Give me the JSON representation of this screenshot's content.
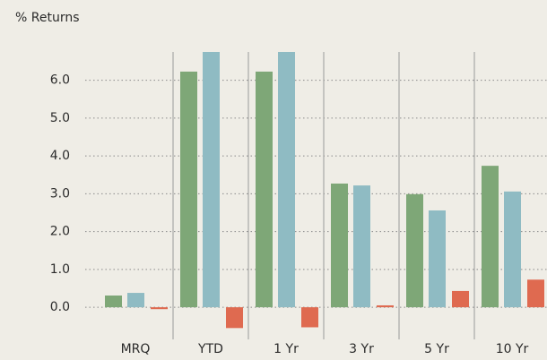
{
  "chart_data": {
    "type": "bar",
    "title": "% Returns",
    "categories": [
      "MRQ",
      "YTD",
      "1 Yr",
      "3 Yr",
      "5 Yr",
      "10 Yr"
    ],
    "series": [
      {
        "color": "#7ea777",
        "values": [
          0.31,
          6.23,
          6.23,
          3.27,
          2.99,
          3.74
        ]
      },
      {
        "color": "#8fbbc3",
        "values": [
          0.38,
          6.8,
          6.8,
          3.22,
          2.56,
          3.06
        ]
      },
      {
        "color": "#df6a50",
        "values": [
          -0.05,
          -0.55,
          -0.53,
          0.05,
          0.43,
          0.73
        ]
      }
    ],
    "ylim": [
      -0.85,
      6.75
    ],
    "yticks": [
      {
        "value": 0,
        "label": "0.0"
      },
      {
        "value": 1,
        "label": "1.0"
      },
      {
        "value": 2,
        "label": "2.0"
      },
      {
        "value": 3,
        "label": "3.0"
      },
      {
        "value": 4,
        "label": "4.0"
      },
      {
        "value": 5,
        "label": "5.0"
      },
      {
        "value": 6,
        "label": "6.0"
      }
    ],
    "grid": true
  }
}
